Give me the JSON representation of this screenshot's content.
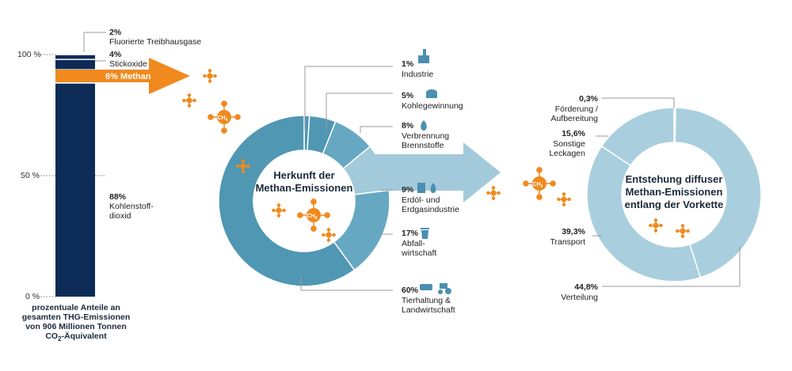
{
  "colors": {
    "navy": "#0d2b57",
    "orange": "#f08a1e",
    "teal_dark": "#4f97b3",
    "teal_mid": "#66a8c2",
    "teal_light": "#a3cadb",
    "ring2": "#a9cfde",
    "ring2_light": "#c6e0ea",
    "icon_blue": "#4b8fb0"
  },
  "chart_data": [
    {
      "type": "bar",
      "stacked": true,
      "ylim": [
        0,
        100
      ],
      "yticks": [
        "100 %",
        "50 %",
        "0 %"
      ],
      "caption_line1": "prozentuale Anteile an",
      "caption_line2": "gesamten THG-Emissionen",
      "caption_line3": "von 906 Millionen Tonnen",
      "caption_line4_a": "CO",
      "caption_line4_sub": "2",
      "caption_line4_b": "-Äquivalent",
      "series": [
        {
          "pct": "88%",
          "value": 88,
          "label_line1": "Kohlenstoff-",
          "label_line2": "dioxid"
        },
        {
          "pct": "6%",
          "value": 6,
          "label_line1": "Methan"
        },
        {
          "pct": "4%",
          "value": 4,
          "label_line1": "Stickoxide"
        },
        {
          "pct": "2%",
          "value": 2,
          "label_line1": "Fluorierte Treibhausgase"
        }
      ]
    },
    {
      "type": "pie",
      "donut": true,
      "title_line1": "Herkunft  der",
      "title_line2": "Methan-Emissionen",
      "slices": [
        {
          "pct": "1%",
          "value": 1,
          "label_line1": "Industrie",
          "icon": "factory-icon"
        },
        {
          "pct": "5%",
          "value": 5,
          "label_line1": "Kohlegewinnung",
          "icon": "mine-cart-icon"
        },
        {
          "pct": "8%",
          "value": 8,
          "label_line1": "Verbrennung",
          "label_line2": "Brennstoffe",
          "icon": "flame-icon"
        },
        {
          "pct": "9%",
          "value": 9,
          "label_line1": "Erdöl- und",
          "label_line2": "Erdgasindustrie",
          "icon": "oil-gas-icon"
        },
        {
          "pct": "17%",
          "value": 17,
          "label_line1": "Abfall-",
          "label_line2": "wirtschaft",
          "icon": "trash-bin-icon"
        },
        {
          "pct": "60%",
          "value": 60,
          "label_line1": "Tierhaltung &",
          "label_line2": "Landwirtschaft",
          "icon": "livestock-tractor-icon"
        }
      ]
    },
    {
      "type": "pie",
      "donut": true,
      "title_line1": "Entstehung diffuser",
      "title_line2": "Methan-Emissionen",
      "title_line3": "entlang der Vorkette",
      "slices": [
        {
          "pct": "0,3%",
          "value": 0.3,
          "label_line1": "Förderung /",
          "label_line2": "Aufbereitung"
        },
        {
          "pct": "44,8%",
          "value": 44.8,
          "label_line1": "Verteilung"
        },
        {
          "pct": "39,3%",
          "value": 39.3,
          "label_line1": "Transport"
        },
        {
          "pct": "15,6%",
          "value": 15.6,
          "label_line1": "Sonstige",
          "label_line2": "Leckagen"
        }
      ]
    }
  ],
  "molecule_label": "CH",
  "molecule_sub": "4"
}
